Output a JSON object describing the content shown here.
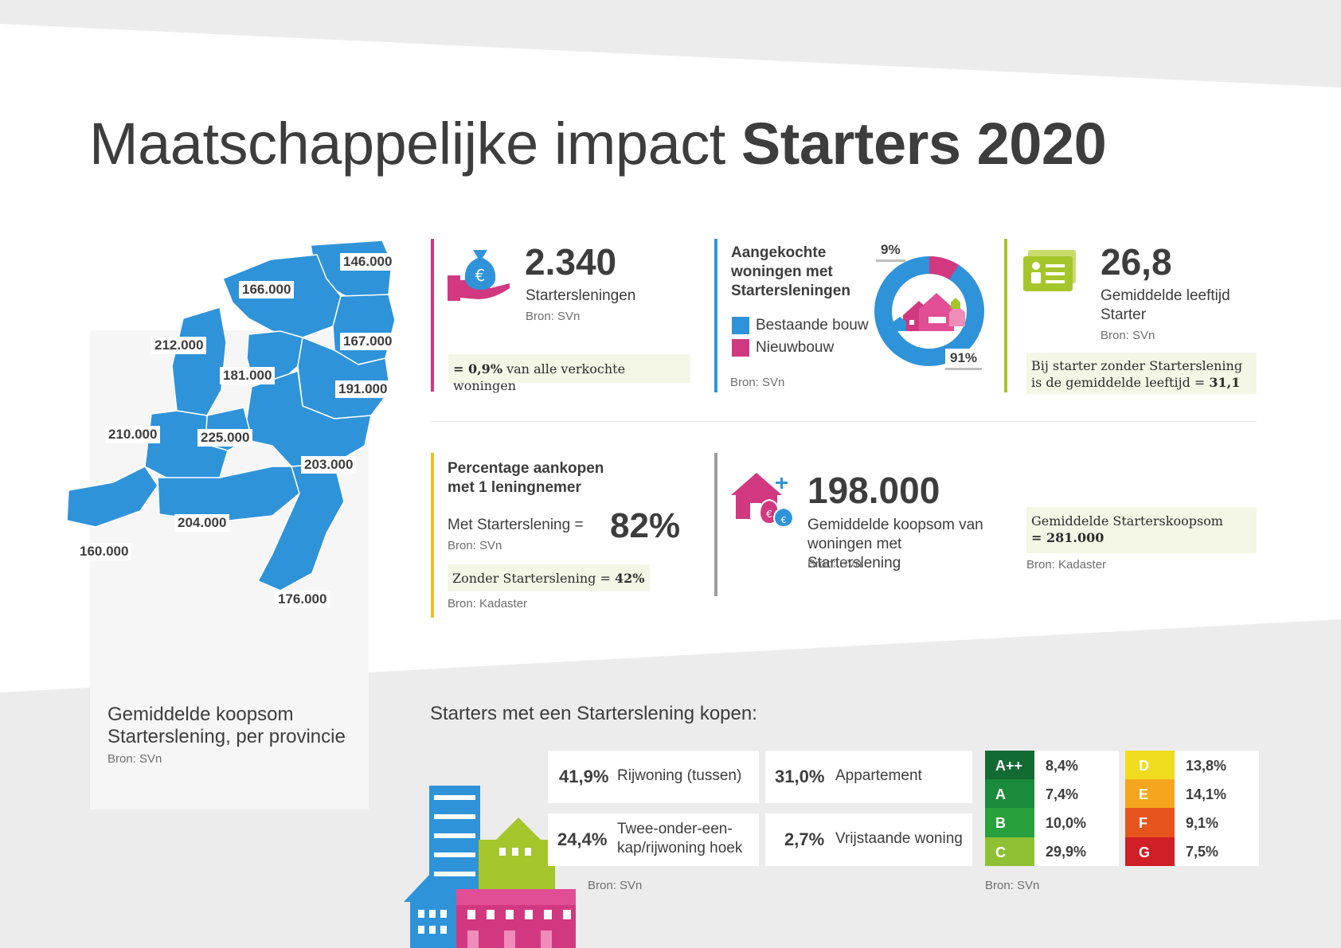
{
  "colors": {
    "blue": "#2f93d9",
    "magenta": "#d1387f",
    "lime": "#a5c62b",
    "yellow": "#e7c12a",
    "grey": "#9d9d9d",
    "background_band": "#eeeeee",
    "highlight": "#f4f6e6"
  },
  "title": {
    "regular": "Maatschappelijke impact ",
    "bold": "Starters 2020"
  },
  "map": {
    "caption": "Gemiddelde koopsom Starterslening, per provincie",
    "source": "Bron: SVn",
    "provinces": [
      {
        "value": "146.000"
      },
      {
        "value": "166.000"
      },
      {
        "value": "212.000"
      },
      {
        "value": "167.000"
      },
      {
        "value": "181.000"
      },
      {
        "value": "191.000"
      },
      {
        "value": "210.000"
      },
      {
        "value": "225.000"
      },
      {
        "value": "203.000"
      },
      {
        "value": "204.000"
      },
      {
        "value": "160.000"
      },
      {
        "value": "176.000"
      }
    ]
  },
  "loans": {
    "icon": "money-bag-hand-icon",
    "value": "2.340",
    "label": "Startersleningen",
    "source": "Bron: SVn",
    "note_bold": "= 0,9%",
    "note_rest": " van alle verkochte woningen"
  },
  "purchased": {
    "heading": "Aangekochte woningen met Startersleningen",
    "legend": [
      {
        "label": "Bestaande bouw",
        "color": "#2f93d9"
      },
      {
        "label": "Nieuwbouw",
        "color": "#d1387f"
      }
    ],
    "donut": {
      "existing_pct": 91,
      "new_pct": 9,
      "label_existing": "91%",
      "label_new": "9%"
    },
    "icon": "houses-icon",
    "source": "Bron: SVn"
  },
  "age": {
    "icon": "id-card-icon",
    "value": "26,8",
    "label": "Gemiddelde leeftijd Starter",
    "source": "Bron: SVn",
    "note": "Bij starter zonder Starterslening is de gemiddelde leeftijd = ",
    "note_value": "31,1"
  },
  "single_borrower": {
    "heading": "Percentage aankopen met 1 leningnemer",
    "with_label": "Met Starterslening =",
    "with_value": "82%",
    "source1": "Bron: SVn",
    "without_label": "Zonder Starterslening =",
    "without_value": "42%",
    "source2": "Bron: Kadaster"
  },
  "price": {
    "icon": "house-plus-money-icon",
    "value": "198.000",
    "label": "Gemiddelde koopsom van woningen met Starterslening",
    "source": "Bron: SVn",
    "note_title": "Gemiddelde Starterskoopsom",
    "note_value": "= 281.000",
    "note_source": "Bron: Kadaster"
  },
  "buy": {
    "heading": "Starters met een Starterslening kopen:",
    "types": [
      {
        "pct": "41,9%",
        "label": "Rijwoning (tussen)"
      },
      {
        "pct": "31,0%",
        "label": "Appartement"
      },
      {
        "pct": "24,4%",
        "label": "Twee-onder-een-kap/rijwoning hoek"
      },
      {
        "pct": "2,7%",
        "label": "Vrijstaande woning"
      }
    ],
    "source": "Bron: SVn",
    "energy_source": "Bron: SVn",
    "energy": [
      {
        "label": "A++",
        "value": "8,4%",
        "color": "#126b32"
      },
      {
        "label": "A",
        "value": "7,4%",
        "color": "#1a8a3b"
      },
      {
        "label": "B",
        "value": "10,0%",
        "color": "#28a13c"
      },
      {
        "label": "C",
        "value": "29,9%",
        "color": "#8fc135"
      },
      {
        "label": "D",
        "value": "13,8%",
        "color": "#f0dc1e"
      },
      {
        "label": "E",
        "value": "14,1%",
        "color": "#f5a61e"
      },
      {
        "label": "F",
        "value": "9,1%",
        "color": "#e8541e"
      },
      {
        "label": "G",
        "value": "7,5%",
        "color": "#d01f27"
      }
    ]
  }
}
